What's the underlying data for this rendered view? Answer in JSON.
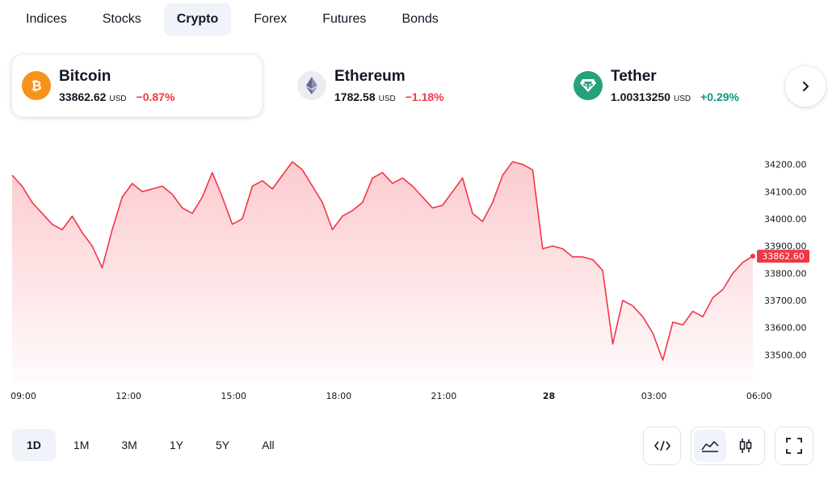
{
  "tabs": [
    {
      "label": "Indices",
      "active": false
    },
    {
      "label": "Stocks",
      "active": false
    },
    {
      "label": "Crypto",
      "active": true
    },
    {
      "label": "Forex",
      "active": false
    },
    {
      "label": "Futures",
      "active": false
    },
    {
      "label": "Bonds",
      "active": false
    }
  ],
  "tickers": [
    {
      "name": "Bitcoin",
      "price": "33862.62",
      "currency": "USD",
      "change": "−0.87%",
      "icon": "bitcoin-icon",
      "color": "#f7931a"
    },
    {
      "name": "Ethereum",
      "price": "1782.58",
      "currency": "USD",
      "change": "−1.18%",
      "icon": "ethereum-icon",
      "color": "#627eea"
    },
    {
      "name": "Tether",
      "price": "1.00313250",
      "currency": "USD",
      "change": "+0.29%",
      "icon": "tether-icon",
      "color": "#26a17b"
    }
  ],
  "colors": {
    "negative": "#f23645",
    "positive": "#089981",
    "line": "#f23645",
    "active_bg": "#f0f3fa"
  },
  "chart_data": {
    "type": "area",
    "x_ticks": [
      "09:00",
      "12:00",
      "15:00",
      "18:00",
      "21:00",
      "28",
      "03:00",
      "06:00"
    ],
    "y_ticks": [
      "34200.00",
      "34100.00",
      "34000.00",
      "33900.00",
      "33800.00",
      "33700.00",
      "33600.00",
      "33500.00"
    ],
    "ylim": [
      33400,
      34270
    ],
    "last_price_label": "33862.60",
    "values": [
      34160,
      34120,
      34060,
      34020,
      33980,
      33960,
      34010,
      33950,
      33900,
      33820,
      33960,
      34080,
      34130,
      34100,
      34110,
      34120,
      34090,
      34040,
      34020,
      34080,
      34170,
      34080,
      33980,
      34000,
      34120,
      34140,
      34110,
      34160,
      34210,
      34180,
      34120,
      34060,
      33960,
      34010,
      34030,
      34060,
      34150,
      34170,
      34130,
      34150,
      34120,
      34080,
      34040,
      34050,
      34100,
      34150,
      34020,
      33990,
      34060,
      34160,
      34210,
      34200,
      34180,
      33890,
      33900,
      33890,
      33860,
      33860,
      33850,
      33810,
      33540,
      33700,
      33680,
      33640,
      33580,
      33480,
      33620,
      33610,
      33660,
      33640,
      33710,
      33740,
      33800,
      33840,
      33863
    ]
  },
  "ranges": [
    {
      "label": "1D",
      "active": true
    },
    {
      "label": "1M",
      "active": false
    },
    {
      "label": "3M",
      "active": false
    },
    {
      "label": "1Y",
      "active": false
    },
    {
      "label": "5Y",
      "active": false
    },
    {
      "label": "All",
      "active": false
    }
  ]
}
